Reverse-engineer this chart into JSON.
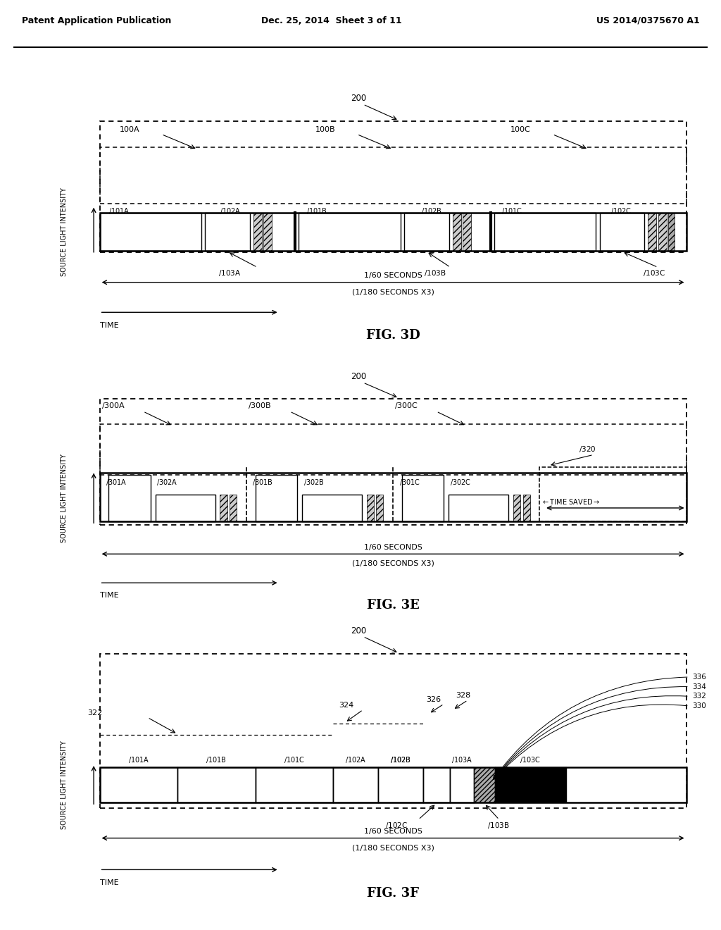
{
  "bg_color": "#ffffff",
  "header_left": "Patent Application Publication",
  "header_center": "Dec. 25, 2014  Sheet 3 of 11",
  "header_right": "US 2014/0375670 A1"
}
